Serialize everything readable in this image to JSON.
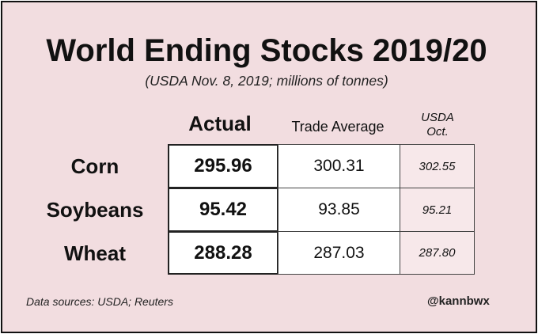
{
  "chart_data": {
    "type": "table",
    "title": "World Ending Stocks 2019/20",
    "subtitle": "(USDA Nov. 8, 2019; millions of tonnes)",
    "columns": [
      "Actual",
      "Trade Average",
      "USDA Oct."
    ],
    "usda_line1": "USDA",
    "usda_line2": "Oct.",
    "rows": [
      {
        "label": "Corn",
        "actual": "295.96",
        "trade_average": "300.31",
        "usda_oct": "302.55"
      },
      {
        "label": "Soybeans",
        "actual": "95.42",
        "trade_average": "93.85",
        "usda_oct": "95.21"
      },
      {
        "label": "Wheat",
        "actual": "288.28",
        "trade_average": "287.03",
        "usda_oct": "287.80"
      }
    ]
  },
  "footer": {
    "source": "Data sources: USDA; Reuters",
    "handle": "@kannbwx"
  },
  "colors": {
    "background": "#f2dde0",
    "usda_column": "#f7e8ea",
    "text": "#111111"
  }
}
